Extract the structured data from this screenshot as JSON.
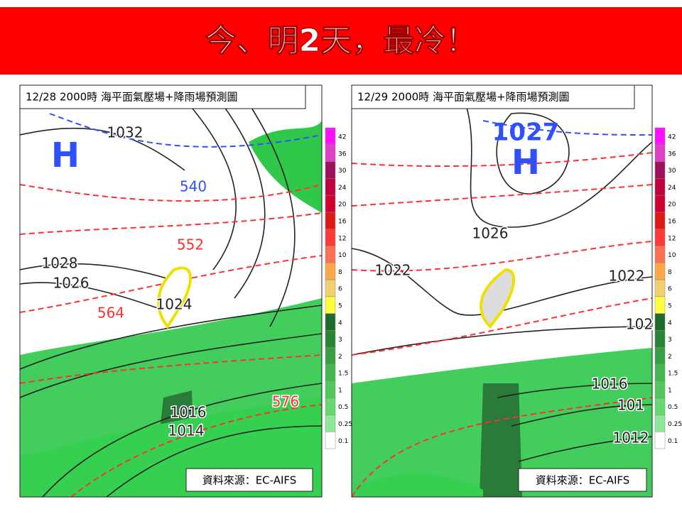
{
  "banner": {
    "title": "今、明2天，最冷！"
  },
  "colorbar": {
    "ticks": [
      42,
      36,
      30,
      24,
      20,
      16,
      12,
      10,
      8,
      6,
      5,
      4,
      3,
      2,
      1.5,
      1,
      0.5,
      0.25,
      0.1
    ],
    "colors": [
      "#ff10ff",
      "#e040c8",
      "#a0105a",
      "#c00040",
      "#d00030",
      "#e01818",
      "#ff3838",
      "#ff7050",
      "#ffa848",
      "#f0d070",
      "#ffff40",
      "#1f6a2c",
      "#2a8436",
      "#36a042",
      "#44b850",
      "#52c85c",
      "#66d870",
      "#8ee89a",
      "#ffffff"
    ]
  },
  "panels": [
    {
      "header": "12/28  2000時  海平面氣壓場+降雨場預測圖",
      "source": "資料來源：EC-AIFS",
      "labels": [
        {
          "text": "H",
          "color": "#3050ff"
        },
        {
          "text": "1032",
          "color": "#222222"
        },
        {
          "text": "540",
          "color": "#3050ff"
        },
        {
          "text": "552",
          "color": "#ff3030"
        },
        {
          "text": "1028",
          "color": "#222222"
        },
        {
          "text": "1026",
          "color": "#222222"
        },
        {
          "text": "564",
          "color": "#ff3030"
        },
        {
          "text": "1024",
          "color": "#222222"
        },
        {
          "text": "576",
          "color": "#ff3030"
        },
        {
          "text": "1016",
          "color": "#222222"
        },
        {
          "text": "1014",
          "color": "#222222"
        }
      ]
    },
    {
      "header": "12/29  2000時  海平面氣壓場+降雨場預測圖",
      "source": "資料來源：EC-AIFS",
      "labels": [
        {
          "text": "1027",
          "color": "#3050ff"
        },
        {
          "text": "H",
          "color": "#3050ff"
        },
        {
          "text": "1026",
          "color": "#222222"
        },
        {
          "text": "1022",
          "color": "#222222"
        },
        {
          "text": "1022",
          "color": "#222222"
        },
        {
          "text": "102",
          "color": "#222222"
        },
        {
          "text": "1016",
          "color": "#222222"
        },
        {
          "text": "101",
          "color": "#222222"
        },
        {
          "text": "1012",
          "color": "#222222"
        }
      ]
    }
  ]
}
